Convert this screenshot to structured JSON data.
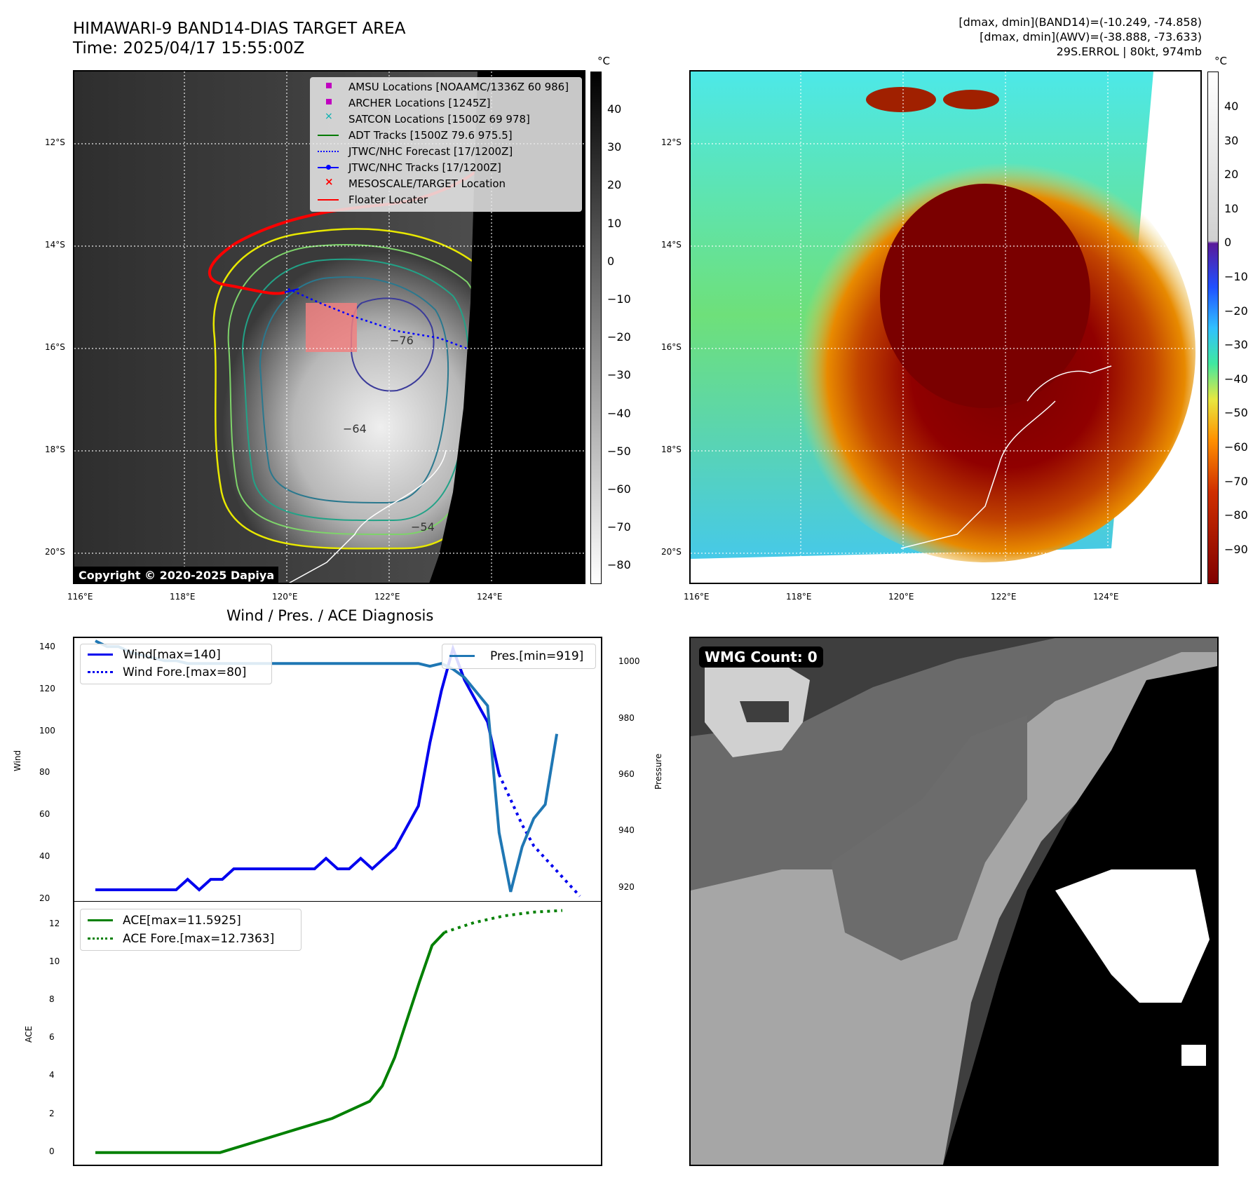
{
  "header": {
    "title_line1": "HIMAWARI-9 BAND14-DIAS TARGET AREA",
    "title_line2": "Time: 2025/04/17 15:55:00Z",
    "info_line1": "[dmax, dmin](BAND14)=(-10.249, -74.858)",
    "info_line2": "[dmax, dmin](AWV)=(-38.888, -73.633)",
    "info_line3": "29S.ERROL | 80kt, 974mb"
  },
  "map_axes": {
    "lat_labels": [
      "12°S",
      "14°S",
      "16°S",
      "18°S",
      "20°S"
    ],
    "lon_labels": [
      "116°E",
      "118°E",
      "120°E",
      "122°E",
      "124°E"
    ]
  },
  "left_map": {
    "copyright": "Copyright © 2020-2025 Dapiya",
    "colorbar_unit": "°C",
    "colorbar_ticks": [
      "40",
      "30",
      "20",
      "10",
      "0",
      "−10",
      "−20",
      "−30",
      "−40",
      "−50",
      "−60",
      "−70",
      "−80"
    ],
    "contour_labels": [
      "−76",
      "−64",
      "−54"
    ],
    "legend": [
      {
        "label": "AMSU Locations [NOAAMC/1336Z 60 986]",
        "color": "#c000c0",
        "symbol": "square"
      },
      {
        "label": "ARCHER Locations [1245Z]",
        "color": "#c000c0",
        "symbol": "square"
      },
      {
        "label": "SATCON Locations [1500Z 69 978]",
        "color": "#00b0b0",
        "symbol": "x"
      },
      {
        "label": "ADT Tracks [1500Z 79.6 975.5]",
        "color": "#007a00",
        "symbol": "line"
      },
      {
        "label": "JTWC/NHC Forecast [17/1200Z]",
        "color": "#0000ff",
        "symbol": "dotted"
      },
      {
        "label": "JTWC/NHC Tracks [17/1200Z]",
        "color": "#0000ff",
        "symbol": "line-dot"
      },
      {
        "label": "MESOSCALE/TARGET Location",
        "color": "#ff0000",
        "symbol": "x"
      },
      {
        "label": "Floater Locater",
        "color": "#ff0000",
        "symbol": "line"
      }
    ]
  },
  "right_map": {
    "colorbar_unit": "°C",
    "colorbar_ticks": [
      "40",
      "30",
      "20",
      "10",
      "0",
      "−10",
      "−20",
      "−30",
      "−40",
      "−50",
      "−60",
      "−70",
      "−80",
      "−90"
    ]
  },
  "wmg_panel": {
    "badge": "WMG Count: 0"
  },
  "chart_data": [
    {
      "type": "line",
      "title": "Wind / Pres. / ACE Diagnosis",
      "ylabel": "Wind",
      "ylim": [
        20,
        145
      ],
      "yticks": [
        "140",
        "120",
        "100",
        "80",
        "60",
        "40",
        "20"
      ],
      "y2label": "Pressure",
      "y2lim": [
        916,
        1009
      ],
      "y2ticks": [
        "1000",
        "980",
        "960",
        "940",
        "920"
      ],
      "legend_left": [
        "Wind[max=140]",
        "Wind Fore.[max=80]"
      ],
      "legend_right": [
        "Pres.[min=919]"
      ],
      "series": [
        {
          "name": "Wind[max=140]",
          "color": "#0000ee",
          "style": "solid",
          "values": [
            25,
            25,
            25,
            25,
            25,
            25,
            25,
            25,
            30,
            25,
            30,
            30,
            35,
            35,
            35,
            35,
            35,
            35,
            35,
            35,
            40,
            35,
            35,
            40,
            35,
            40,
            45,
            55,
            65,
            95,
            120,
            140,
            125,
            115,
            105,
            80
          ]
        },
        {
          "name": "Wind Fore.[max=80]",
          "color": "#0000ee",
          "style": "dotted",
          "values": [
            null,
            null,
            null,
            null,
            null,
            null,
            null,
            null,
            null,
            null,
            null,
            null,
            null,
            null,
            null,
            null,
            null,
            null,
            null,
            null,
            null,
            null,
            null,
            null,
            null,
            null,
            null,
            null,
            null,
            null,
            null,
            null,
            null,
            null,
            null,
            80,
            68,
            56,
            46,
            40,
            34,
            28,
            22
          ]
        },
        {
          "name": "Pres.[min=919]",
          "color": "#1f77b4",
          "style": "solid",
          "axis": "right",
          "values": [
            1008,
            1006,
            1006,
            1004,
            1003,
            1002,
            1001,
            1001,
            1000,
            1000,
            1000,
            1000,
            1000,
            1000,
            1000,
            1000,
            1000,
            1000,
            1000,
            1000,
            1000,
            1000,
            1000,
            1000,
            1000,
            1000,
            1000,
            1000,
            1000,
            999,
            1000,
            998,
            995,
            990,
            985,
            940,
            919,
            935,
            945,
            950,
            975
          ]
        }
      ]
    },
    {
      "type": "line",
      "ylabel": "ACE",
      "ylim": [
        -0.6,
        13.2
      ],
      "yticks": [
        "12",
        "10",
        "8",
        "6",
        "4",
        "2",
        "0"
      ],
      "legend": [
        "ACE[max=11.5925]",
        "ACE Fore.[max=12.7363]"
      ],
      "series": [
        {
          "name": "ACE[max=11.5925]",
          "color": "#008000",
          "style": "solid",
          "values": [
            0,
            0,
            0,
            0,
            0,
            0,
            0,
            0,
            0,
            0,
            0,
            0.2,
            0.4,
            0.6,
            0.8,
            1.0,
            1.2,
            1.4,
            1.6,
            1.8,
            2.1,
            2.4,
            2.7,
            3.5,
            5.0,
            7.0,
            9.0,
            10.9,
            11.59
          ]
        },
        {
          "name": "ACE Fore.[max=12.7363]",
          "color": "#008000",
          "style": "dotted",
          "values": [
            11.59,
            12.1,
            12.45,
            12.65,
            12.74
          ]
        }
      ]
    }
  ]
}
